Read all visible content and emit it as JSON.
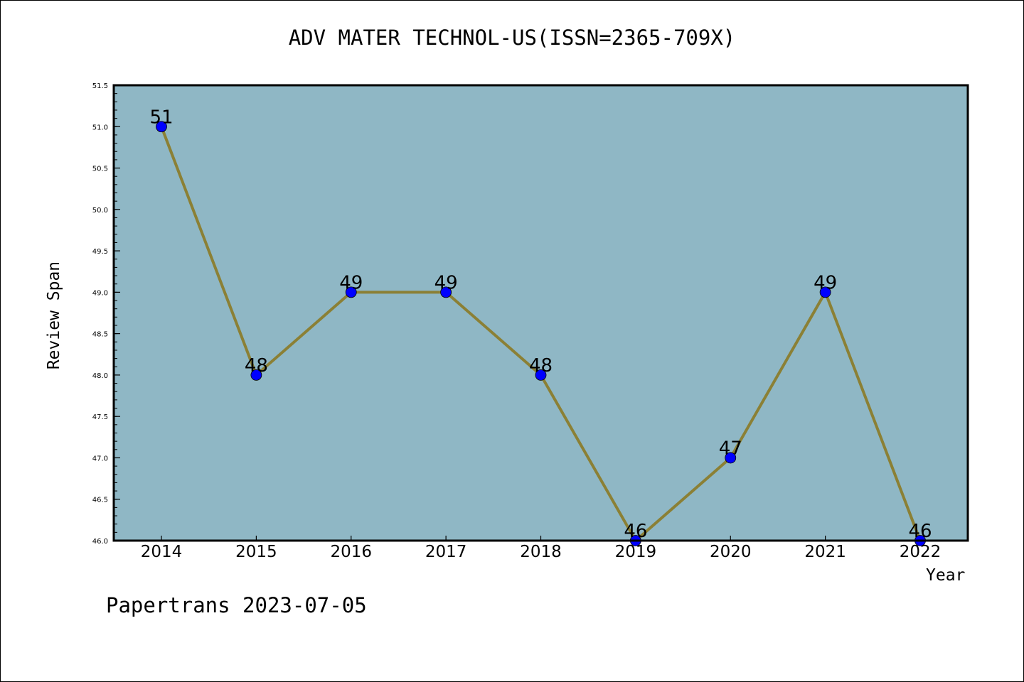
{
  "chart_data": {
    "type": "line",
    "title": "ADV MATER TECHNOL-US(ISSN=2365-709X)",
    "xlabel": "Year",
    "ylabel": "Review Span",
    "categories": [
      "2014",
      "2015",
      "2016",
      "2017",
      "2018",
      "2019",
      "2020",
      "2021",
      "2022"
    ],
    "values": [
      51,
      48,
      49,
      49,
      48,
      46,
      47,
      49,
      46
    ],
    "data_labels": [
      "51",
      "48",
      "49",
      "49",
      "48",
      "46",
      "47",
      "49",
      "46"
    ],
    "ylim": [
      46.0,
      51.5
    ],
    "yticks": [
      "46.0",
      "46.5",
      "47.0",
      "47.5",
      "48.0",
      "48.5",
      "49.0",
      "49.5",
      "50.0",
      "50.5",
      "51.0",
      "51.5"
    ],
    "grid": false,
    "legend": "none",
    "colors": {
      "plot_background": "#8fb7c5",
      "line": "#8b8035",
      "marker": "#0000ff"
    }
  },
  "footer": "Papertrans 2023-07-05"
}
